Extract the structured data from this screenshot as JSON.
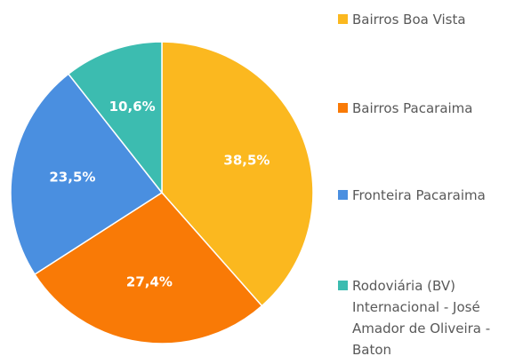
{
  "chart_data": {
    "type": "pie",
    "categories": [
      "Bairros Boa Vista",
      "Bairros Pacaraima",
      "Fronteira Pacaraima",
      "Rodoviária (BV) Internacional - José Amador de Oliveira - Baton"
    ],
    "values": [
      38.5,
      27.4,
      23.5,
      10.6
    ],
    "value_labels": [
      "38,5%",
      "27,4%",
      "23,5%",
      "10,6%"
    ],
    "colors": [
      "#fbb81f",
      "#f97a06",
      "#4a8fe0",
      "#3cbcb0"
    ],
    "legend": "right"
  }
}
